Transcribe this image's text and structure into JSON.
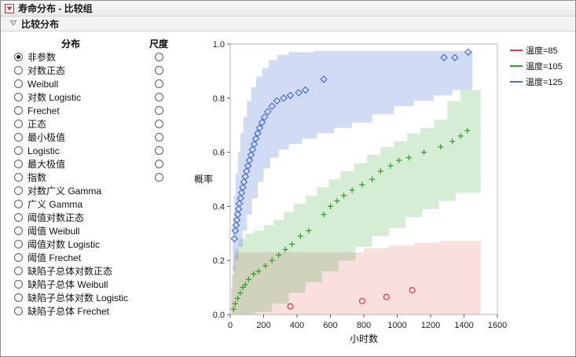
{
  "window": {
    "title": "寿命分布 - 比较组"
  },
  "panel": {
    "title": "比较分布"
  },
  "left_panel": {
    "col1_header": "分布",
    "col2_header": "尺度",
    "items": [
      {
        "label": "非参数",
        "selected": true,
        "scale": true
      },
      {
        "label": "对数正态",
        "selected": false,
        "scale": true
      },
      {
        "label": "Weibull",
        "selected": false,
        "scale": true
      },
      {
        "label": "对数 Logistic",
        "selected": false,
        "scale": true
      },
      {
        "label": "Frechet",
        "selected": false,
        "scale": true
      },
      {
        "label": "正态",
        "selected": false,
        "scale": true
      },
      {
        "label": "最小极值",
        "selected": false,
        "scale": true
      },
      {
        "label": "Logistic",
        "selected": false,
        "scale": true
      },
      {
        "label": "最大极值",
        "selected": false,
        "scale": true
      },
      {
        "label": "指数",
        "selected": false,
        "scale": true
      },
      {
        "label": "对数广义 Gamma",
        "selected": false,
        "scale": false
      },
      {
        "label": "广义 Gamma",
        "selected": false,
        "scale": false
      },
      {
        "label": "阈值对数正态",
        "selected": false,
        "scale": false
      },
      {
        "label": "阈值 Weibull",
        "selected": false,
        "scale": false
      },
      {
        "label": "阈值对数 Logistic",
        "selected": false,
        "scale": false
      },
      {
        "label": "阈值 Frechet",
        "selected": false,
        "scale": false
      },
      {
        "label": "缺陷子总体对数正态",
        "selected": false,
        "scale": false
      },
      {
        "label": "缺陷子总体 Weibull",
        "selected": false,
        "scale": false
      },
      {
        "label": "缺陷子总体对数 Logistic",
        "selected": false,
        "scale": false
      },
      {
        "label": "缺陷子总体 Frechet",
        "selected": false,
        "scale": false
      }
    ]
  },
  "chart_data": {
    "type": "scatter",
    "title": "",
    "xlabel": "小时数",
    "ylabel": "概率",
    "xlim": [
      0,
      1600
    ],
    "ylim": [
      0,
      1
    ],
    "xticks": [
      0,
      200,
      400,
      600,
      800,
      1000,
      1200,
      1400,
      1600
    ],
    "yticks": [
      0.0,
      0.2,
      0.4,
      0.6,
      0.8,
      1.0
    ],
    "grid": false,
    "legend_position": "top-right",
    "series": [
      {
        "name": "温度=85",
        "color": "#e03b3b",
        "marker": "circle",
        "band_opacity": 0.16,
        "points": [
          [
            360,
            0.03
          ],
          [
            790,
            0.05
          ],
          [
            935,
            0.065
          ],
          [
            1090,
            0.09
          ]
        ],
        "band": {
          "upper": [
            [
              5,
              0.1
            ],
            [
              15,
              0.18
            ],
            [
              25,
              0.22
            ],
            [
              40,
              0.23
            ],
            [
              700,
              0.23
            ],
            [
              800,
              0.245
            ],
            [
              950,
              0.255
            ],
            [
              1100,
              0.265
            ],
            [
              1250,
              0.272
            ],
            [
              1500,
              0.28
            ]
          ],
          "lower": [
            [
              5,
              0.0
            ],
            [
              1500,
              0.0
            ]
          ]
        }
      },
      {
        "name": "温度=105",
        "color": "#2e9e2e",
        "marker": "plus",
        "band_opacity": 0.2,
        "points": [
          [
            20,
            0.02
          ],
          [
            30,
            0.04
          ],
          [
            45,
            0.06
          ],
          [
            60,
            0.08
          ],
          [
            75,
            0.1
          ],
          [
            90,
            0.11
          ],
          [
            110,
            0.13
          ],
          [
            140,
            0.15
          ],
          [
            170,
            0.16
          ],
          [
            210,
            0.18
          ],
          [
            250,
            0.2
          ],
          [
            290,
            0.22
          ],
          [
            330,
            0.24
          ],
          [
            370,
            0.26
          ],
          [
            420,
            0.29
          ],
          [
            470,
            0.31
          ],
          [
            560,
            0.37
          ],
          [
            600,
            0.4
          ],
          [
            640,
            0.42
          ],
          [
            680,
            0.44
          ],
          [
            730,
            0.46
          ],
          [
            790,
            0.48
          ],
          [
            850,
            0.5
          ],
          [
            900,
            0.53
          ],
          [
            960,
            0.55
          ],
          [
            1010,
            0.57
          ],
          [
            1070,
            0.58
          ],
          [
            1160,
            0.6
          ],
          [
            1260,
            0.62
          ],
          [
            1330,
            0.64
          ],
          [
            1380,
            0.66
          ],
          [
            1420,
            0.68
          ]
        ],
        "band": {
          "upper": [
            [
              10,
              0.15
            ],
            [
              25,
              0.24
            ],
            [
              50,
              0.28
            ],
            [
              90,
              0.3
            ],
            [
              140,
              0.31
            ],
            [
              200,
              0.33
            ],
            [
              260,
              0.35
            ],
            [
              320,
              0.38
            ],
            [
              380,
              0.41
            ],
            [
              450,
              0.44
            ],
            [
              520,
              0.47
            ],
            [
              590,
              0.5
            ],
            [
              660,
              0.53
            ],
            [
              740,
              0.56
            ],
            [
              820,
              0.59
            ],
            [
              900,
              0.62
            ],
            [
              980,
              0.64
            ],
            [
              1060,
              0.67
            ],
            [
              1140,
              0.69
            ],
            [
              1220,
              0.72
            ],
            [
              1300,
              0.79
            ],
            [
              1380,
              0.83
            ],
            [
              1500,
              0.85
            ]
          ],
          "lower": [
            [
              10,
              0.0
            ],
            [
              150,
              0.01
            ],
            [
              250,
              0.04
            ],
            [
              350,
              0.08
            ],
            [
              450,
              0.12
            ],
            [
              550,
              0.16
            ],
            [
              650,
              0.2
            ],
            [
              750,
              0.25
            ],
            [
              850,
              0.29
            ],
            [
              950,
              0.32
            ],
            [
              1050,
              0.36
            ],
            [
              1150,
              0.39
            ],
            [
              1250,
              0.42
            ],
            [
              1350,
              0.45
            ],
            [
              1500,
              0.49
            ]
          ]
        }
      },
      {
        "name": "温度=125",
        "color": "#4a6fd4",
        "marker": "diamond",
        "band_opacity": 0.25,
        "points": [
          [
            25,
            0.28
          ],
          [
            30,
            0.31
          ],
          [
            35,
            0.33
          ],
          [
            40,
            0.35
          ],
          [
            45,
            0.37
          ],
          [
            50,
            0.39
          ],
          [
            55,
            0.41
          ],
          [
            62,
            0.43
          ],
          [
            68,
            0.45
          ],
          [
            75,
            0.47
          ],
          [
            82,
            0.49
          ],
          [
            90,
            0.51
          ],
          [
            98,
            0.53
          ],
          [
            106,
            0.55
          ],
          [
            115,
            0.57
          ],
          [
            124,
            0.59
          ],
          [
            133,
            0.61
          ],
          [
            143,
            0.63
          ],
          [
            153,
            0.65
          ],
          [
            164,
            0.67
          ],
          [
            176,
            0.69
          ],
          [
            190,
            0.71
          ],
          [
            205,
            0.73
          ],
          [
            225,
            0.75
          ],
          [
            250,
            0.77
          ],
          [
            280,
            0.79
          ],
          [
            320,
            0.8
          ],
          [
            360,
            0.81
          ],
          [
            410,
            0.82
          ],
          [
            450,
            0.83
          ],
          [
            560,
            0.87
          ],
          [
            1280,
            0.95
          ],
          [
            1345,
            0.95
          ],
          [
            1425,
            0.97
          ]
        ],
        "band": {
          "upper": [
            [
              15,
              0.36
            ],
            [
              22,
              0.44
            ],
            [
              32,
              0.52
            ],
            [
              45,
              0.6
            ],
            [
              60,
              0.67
            ],
            [
              78,
              0.73
            ],
            [
              100,
              0.79
            ],
            [
              125,
              0.84
            ],
            [
              155,
              0.88
            ],
            [
              190,
              0.91
            ],
            [
              230,
              0.94
            ],
            [
              280,
              0.96
            ],
            [
              350,
              0.97
            ],
            [
              500,
              0.975
            ],
            [
              1450,
              0.98
            ]
          ],
          "lower": [
            [
              15,
              0.16
            ],
            [
              30,
              0.2
            ],
            [
              50,
              0.25
            ],
            [
              75,
              0.31
            ],
            [
              100,
              0.37
            ],
            [
              130,
              0.43
            ],
            [
              165,
              0.49
            ],
            [
              200,
              0.54
            ],
            [
              240,
              0.58
            ],
            [
              290,
              0.61
            ],
            [
              350,
              0.63
            ],
            [
              430,
              0.65
            ],
            [
              520,
              0.67
            ],
            [
              620,
              0.69
            ],
            [
              730,
              0.71
            ],
            [
              850,
              0.74
            ],
            [
              980,
              0.77
            ],
            [
              1100,
              0.79
            ],
            [
              1220,
              0.81
            ],
            [
              1330,
              0.83
            ],
            [
              1450,
              0.845
            ]
          ]
        }
      }
    ]
  }
}
